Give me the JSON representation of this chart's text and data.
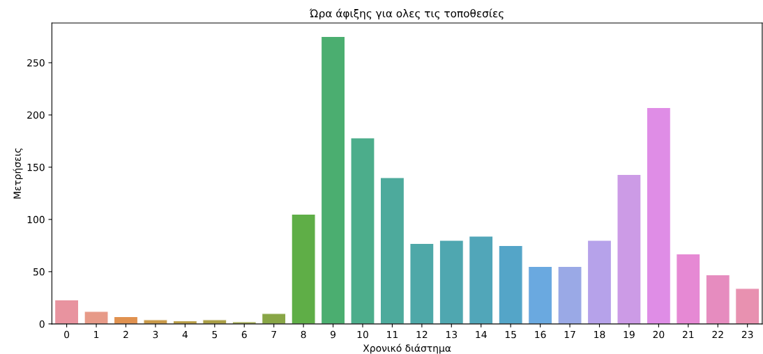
{
  "chart_data": {
    "type": "bar",
    "title": "Ώρα άφιξης για ολες τις τοποθεσίες",
    "xlabel": "Χρονικό διάστημα",
    "ylabel": "Μετρήσεις",
    "categories": [
      "0",
      "1",
      "2",
      "3",
      "4",
      "5",
      "6",
      "7",
      "8",
      "9",
      "10",
      "11",
      "12",
      "13",
      "14",
      "15",
      "16",
      "17",
      "18",
      "19",
      "20",
      "21",
      "22",
      "23"
    ],
    "values": [
      23,
      12,
      7,
      4,
      3,
      4,
      2,
      10,
      105,
      275,
      178,
      140,
      77,
      80,
      84,
      75,
      55,
      55,
      80,
      143,
      207,
      67,
      47,
      34
    ],
    "colors": [
      "#e8939f",
      "#e79a88",
      "#e0914f",
      "#c99a49",
      "#b99e48",
      "#aa9f46",
      "#9ba346",
      "#88a646",
      "#5fae47",
      "#4bae70",
      "#4cad8b",
      "#4daa9c",
      "#4ea8a8",
      "#4fa7b0",
      "#51a6b9",
      "#54a5c8",
      "#6aa9e0",
      "#9aa9e6",
      "#b6a2ea",
      "#cc9be6",
      "#df8de6",
      "#e689d4",
      "#e68cbf",
      "#e891b0"
    ],
    "ylim": [
      0,
      288
    ],
    "yticks": [
      0,
      50,
      100,
      150,
      200,
      250
    ],
    "grid": false
  }
}
